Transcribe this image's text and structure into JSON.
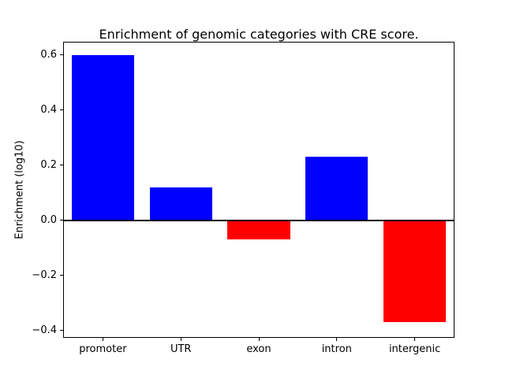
{
  "chart_data": {
    "type": "bar",
    "title": "Enrichment of genomic categories with CRE score.",
    "xlabel": "",
    "ylabel": "Enrichment (log10)",
    "categories": [
      "promoter",
      "UTR",
      "exon",
      "intron",
      "intergenic"
    ],
    "values": [
      0.6,
      0.12,
      -0.07,
      0.23,
      -0.37
    ],
    "colors": [
      "#0000ff",
      "#0000ff",
      "#ff0000",
      "#0000ff",
      "#ff0000"
    ],
    "ylim": [
      -0.424,
      0.645
    ],
    "yticks": [
      -0.4,
      -0.2,
      0.0,
      0.2,
      0.4,
      0.6
    ],
    "grid": false,
    "legend": "none",
    "zero_line": true,
    "bar_width_fraction": 0.8
  }
}
